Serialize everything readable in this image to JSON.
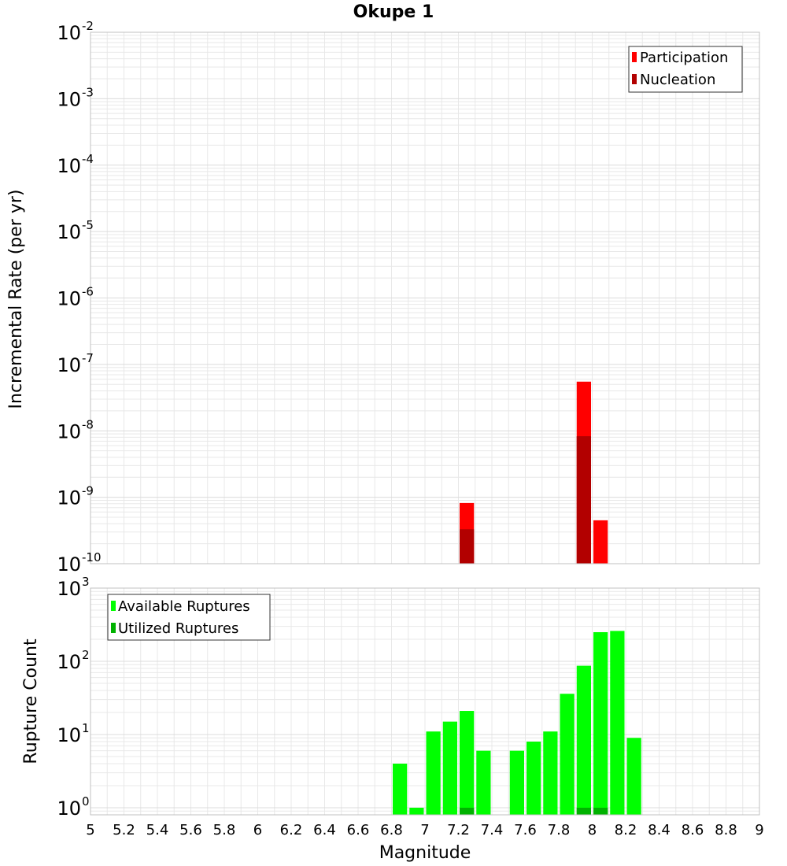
{
  "title": "Okupe 1",
  "xlabel": "Magnitude",
  "x_ticks": [
    "5",
    "5.2",
    "5.4",
    "5.6",
    "5.8",
    "6",
    "6.2",
    "6.4",
    "6.6",
    "6.8",
    "7",
    "7.2",
    "7.4",
    "7.6",
    "7.8",
    "8",
    "8.2",
    "8.4",
    "8.6",
    "8.8",
    "9"
  ],
  "colors": {
    "participation": "#ff0000",
    "nucleation": "#b20000",
    "available": "#00ff00",
    "utilized": "#00b200",
    "grid": "#e8e8e8",
    "frame": "#c0c0c0"
  },
  "chart_data": [
    {
      "type": "bar",
      "ylabel": "Incremental Rate (per yr)",
      "yscale": "log",
      "xlim": [
        5,
        9
      ],
      "ylim": [
        1e-10,
        0.01
      ],
      "y_ticks": [
        {
          "base": "10",
          "exp": "-2"
        },
        {
          "base": "10",
          "exp": "-3"
        },
        {
          "base": "10",
          "exp": "-4"
        },
        {
          "base": "10",
          "exp": "-5"
        },
        {
          "base": "10",
          "exp": "-6"
        },
        {
          "base": "10",
          "exp": "-7"
        },
        {
          "base": "10",
          "exp": "-8"
        },
        {
          "base": "10",
          "exp": "-9"
        },
        {
          "base": "10",
          "exp": "-10"
        }
      ],
      "legend_position": "top-right",
      "bin_width": 0.1,
      "series": [
        {
          "name": "Participation",
          "x": [
            7.25,
            7.95,
            8.05
          ],
          "values": [
            8.2e-10,
            5.5e-08,
            4.5e-10
          ]
        },
        {
          "name": "Nucleation",
          "x": [
            7.25,
            7.95
          ],
          "values": [
            3.3e-10,
            8.3e-09
          ]
        }
      ]
    },
    {
      "type": "bar",
      "ylabel": "Rupture Count",
      "yscale": "log",
      "xlim": [
        5,
        9
      ],
      "ylim": [
        0.8,
        1000
      ],
      "y_ticks": [
        {
          "base": "10",
          "exp": "3"
        },
        {
          "base": "10",
          "exp": "2"
        },
        {
          "base": "10",
          "exp": "1"
        },
        {
          "base": "10",
          "exp": "0"
        }
      ],
      "legend_position": "top-left",
      "bin_width": 0.1,
      "series": [
        {
          "name": "Available Ruptures",
          "x": [
            6.85,
            6.95,
            7.05,
            7.15,
            7.25,
            7.35,
            7.55,
            7.65,
            7.75,
            7.85,
            7.95,
            8.05,
            8.15,
            8.25
          ],
          "values": [
            4,
            1,
            11,
            15,
            21,
            6,
            6,
            8,
            11,
            36,
            87,
            250,
            260,
            9
          ]
        },
        {
          "name": "Utilized Ruptures",
          "x": [
            7.25,
            7.95,
            8.05
          ],
          "values": [
            1,
            1,
            1
          ]
        }
      ]
    }
  ]
}
